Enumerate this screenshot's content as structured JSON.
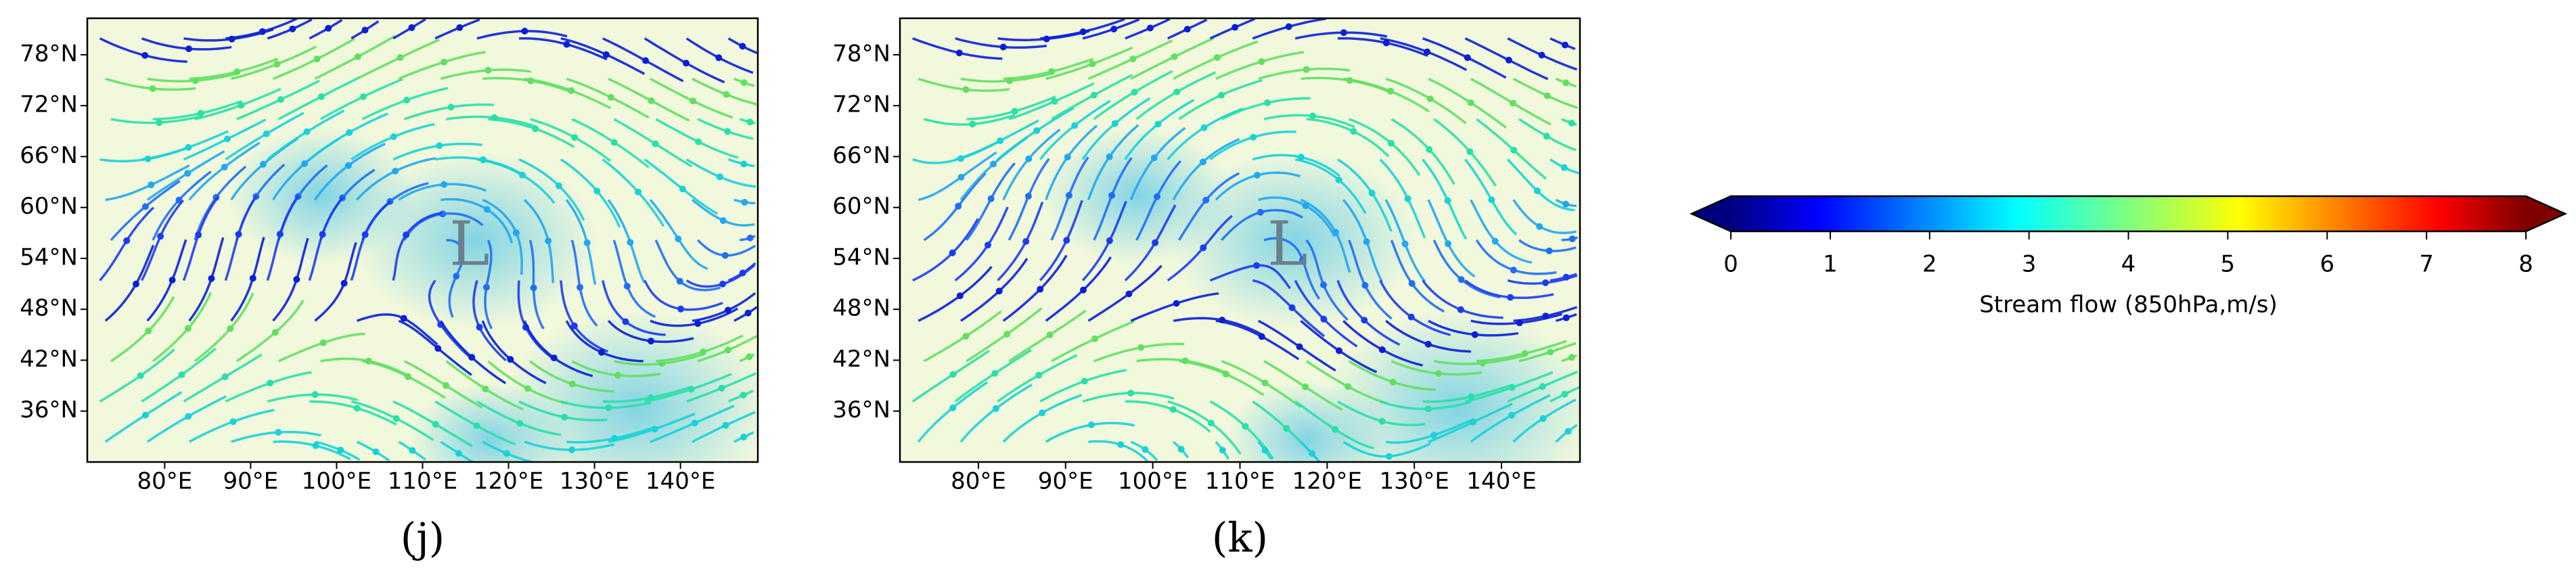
{
  "chart_data": [
    {
      "type": "map",
      "panel_label": "(j)",
      "annotation": "L",
      "xlim": [
        71,
        149
      ],
      "ylim": [
        30,
        82.3
      ],
      "xticks": [
        {
          "value": 80,
          "label": "80°E"
        },
        {
          "value": 90,
          "label": "90°E"
        },
        {
          "value": 100,
          "label": "100°E"
        },
        {
          "value": 110,
          "label": "110°E"
        },
        {
          "value": 120,
          "label": "120°E"
        },
        {
          "value": 130,
          "label": "130°E"
        },
        {
          "value": 140,
          "label": "140°E"
        }
      ],
      "yticks": [
        {
          "value": 36,
          "label": "36°N"
        },
        {
          "value": 42,
          "label": "42°N"
        },
        {
          "value": 48,
          "label": "48°N"
        },
        {
          "value": 54,
          "label": "54°N"
        },
        {
          "value": 60,
          "label": "60°N"
        },
        {
          "value": 66,
          "label": "66°N"
        },
        {
          "value": 72,
          "label": "72°N"
        },
        {
          "value": 78,
          "label": "78°N"
        }
      ]
    },
    {
      "type": "map",
      "panel_label": "(k)",
      "annotation": "L",
      "xlim": [
        71,
        149
      ],
      "ylim": [
        30,
        82.3
      ],
      "xticks": [
        {
          "value": 80,
          "label": "80°E"
        },
        {
          "value": 90,
          "label": "90°E"
        },
        {
          "value": 100,
          "label": "100°E"
        },
        {
          "value": 110,
          "label": "110°E"
        },
        {
          "value": 120,
          "label": "120°E"
        },
        {
          "value": 130,
          "label": "130°E"
        },
        {
          "value": 140,
          "label": "140°E"
        }
      ],
      "yticks": [
        {
          "value": 36,
          "label": "36°N"
        },
        {
          "value": 42,
          "label": "42°N"
        },
        {
          "value": 48,
          "label": "48°N"
        },
        {
          "value": 54,
          "label": "54°N"
        },
        {
          "value": 60,
          "label": "60°N"
        },
        {
          "value": 66,
          "label": "66°N"
        },
        {
          "value": 72,
          "label": "72°N"
        },
        {
          "value": 78,
          "label": "78°N"
        }
      ]
    },
    {
      "type": "colorbar",
      "label": "Stream flow (850hPa,m/s)",
      "extend": "both",
      "colors": [
        "#00007f",
        "#0000ff",
        "#00ffff",
        "#ffff00",
        "#ff0000",
        "#7f0000"
      ],
      "xlim": [
        0,
        8
      ],
      "xticks": [
        0,
        1,
        2,
        3,
        4,
        5,
        6,
        7,
        8
      ]
    }
  ]
}
